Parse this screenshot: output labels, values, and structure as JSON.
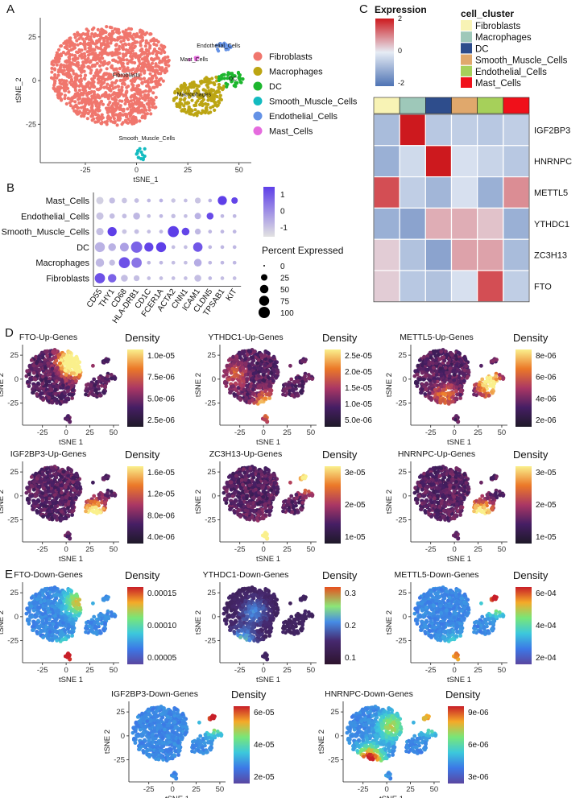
{
  "panels": [
    "A",
    "B",
    "C",
    "D",
    "E"
  ],
  "chart_data": [
    {
      "id": "A",
      "type": "scatter",
      "title": "",
      "xlabel": "tSNE_1",
      "ylabel": "tSNE_2",
      "xticks": [
        -25,
        0,
        25,
        50
      ],
      "yticks": [
        25,
        0,
        -25
      ],
      "xlim": [
        -47,
        56
      ],
      "ylim": [
        -47,
        36
      ],
      "legend": [
        "Fibroblasts",
        "Macrophages",
        "DC",
        "Smooth_Muscle_Cells",
        "Endothelial_Cells",
        "Mast_Cells"
      ],
      "colors": [
        "#F0766D",
        "#BCA513",
        "#1DB62E",
        "#13BBC0",
        "#6492E6",
        "#E56BDE"
      ],
      "cluster_labels": [
        {
          "name": "Fibroblasts",
          "x": -5,
          "y": 2
        },
        {
          "name": "Macrophages",
          "x": 28,
          "y": -9
        },
        {
          "name": "DC",
          "x": 47,
          "y": 0
        },
        {
          "name": "Smooth_Muscle_Cells",
          "x": 5,
          "y": -34
        },
        {
          "name": "Endothelial_Cells",
          "x": 40,
          "y": 19
        },
        {
          "name": "Mast_Cells",
          "x": 28,
          "y": 11
        }
      ]
    },
    {
      "id": "B",
      "type": "scatter",
      "subtype": "dotplot",
      "genes": [
        "CD55",
        "THY1",
        "CD68",
        "HLA-DRB1",
        "CD1C",
        "FCER1A",
        "ACTA2",
        "CNN1",
        "ICAM1",
        "CLDN5",
        "TPSAB1",
        "KIT"
      ],
      "clusters": [
        "Mast_Cells",
        "Endothelial_Cells",
        "Smooth_Muscle_Cells",
        "DC",
        "Macrophages",
        "Fibroblasts"
      ],
      "avg_expression": [
        [
          -0.8,
          -0.5,
          -0.6,
          -0.5,
          -0.4,
          -0.3,
          -0.6,
          -0.5,
          -0.6,
          -0.3,
          1.6,
          1.5
        ],
        [
          -0.6,
          -0.5,
          -0.5,
          -0.4,
          -0.5,
          -0.4,
          -0.5,
          -0.5,
          -0.3,
          1.4,
          -0.4,
          -0.4
        ],
        [
          -0.5,
          1.6,
          -0.6,
          -0.5,
          -0.5,
          -0.4,
          1.6,
          1.5,
          -0.4,
          -0.4,
          -0.4,
          -0.4
        ],
        [
          -0.3,
          -0.3,
          0.0,
          1.0,
          1.5,
          1.6,
          -0.5,
          -0.5,
          1.2,
          -0.4,
          -0.4,
          -0.4
        ],
        [
          -0.4,
          -0.5,
          1.3,
          0.7,
          -0.4,
          -0.4,
          -0.5,
          -0.5,
          -0.2,
          -0.4,
          -0.4,
          -0.4
        ],
        [
          1.3,
          1.0,
          -0.5,
          -0.5,
          -0.5,
          -0.5,
          -0.5,
          -0.5,
          -0.5,
          -0.4,
          -0.5,
          -0.5
        ]
      ],
      "pct_expressed": [
        [
          35,
          20,
          15,
          10,
          5,
          5,
          8,
          5,
          20,
          5,
          60,
          25
        ],
        [
          35,
          15,
          10,
          30,
          5,
          5,
          8,
          5,
          25,
          30,
          5,
          5
        ],
        [
          35,
          60,
          10,
          10,
          5,
          5,
          95,
          40,
          20,
          5,
          5,
          5
        ],
        [
          75,
          40,
          55,
          100,
          60,
          75,
          5,
          5,
          65,
          5,
          5,
          5
        ],
        [
          50,
          20,
          95,
          80,
          5,
          5,
          5,
          5,
          40,
          5,
          5,
          5
        ],
        [
          80,
          50,
          30,
          20,
          5,
          5,
          5,
          5,
          30,
          5,
          5,
          5
        ]
      ],
      "color_legend_ticks": [
        1,
        0,
        -1
      ],
      "size_legend_title": "Percent Expressed",
      "size_legend": [
        0,
        25,
        50,
        75,
        100
      ],
      "colorscale": [
        "#E2E2E2",
        "#5E3FE8"
      ]
    },
    {
      "id": "C",
      "type": "heatmap",
      "legend_title": "Expression",
      "legend_ticks": [
        2,
        0,
        -2
      ],
      "cluster_legend_title": "cell_cluster",
      "cluster_legend": [
        "Fibroblasts",
        "Macrophages",
        "DC",
        "Smooth_Muscle_Cells",
        "Endothelial_Cells",
        "Mast_Cells"
      ],
      "cluster_colors": [
        "#F8F3B5",
        "#9EC8B9",
        "#2E4D8C",
        "#E0A86C",
        "#A6D05A",
        "#F0101A"
      ],
      "rows": [
        "IGF2BP3",
        "HNRNPC",
        "METTL5",
        "YTHDC1",
        "ZC3H13",
        "FTO"
      ],
      "values": [
        [
          -0.8,
          2.0,
          -0.6,
          -0.5,
          -0.6,
          -0.5
        ],
        [
          -1.0,
          -0.3,
          2.0,
          -0.2,
          -0.4,
          -0.6
        ],
        [
          1.5,
          -0.5,
          -0.9,
          -0.2,
          -1.0,
          0.9
        ],
        [
          -1.0,
          -1.2,
          0.6,
          0.6,
          0.4,
          -1.0
        ],
        [
          0.3,
          -0.7,
          -1.2,
          0.7,
          0.7,
          -0.8
        ],
        [
          0.3,
          -0.6,
          -0.7,
          -0.2,
          1.5,
          -0.5
        ]
      ]
    },
    {
      "id": "D1",
      "type": "heatmap",
      "subtype": "density",
      "title": "FTO-Up-Genes",
      "xlabel": "tSNE 1",
      "ylabel": "tSNE 2",
      "legend_title": "Density",
      "legend_ticks": [
        "1.0e-05",
        "7.5e-06",
        "5.0e-06",
        "2.5e-06"
      ],
      "colormap": "inferno",
      "hotspots": [
        {
          "x": 10,
          "y": 15,
          "w": 1.0
        },
        {
          "x": 3,
          "y": 20,
          "w": 0.7
        }
      ],
      "xticks": [
        -25,
        0,
        25,
        50
      ],
      "yticks": [
        25,
        0,
        -25
      ]
    },
    {
      "id": "D2",
      "type": "heatmap",
      "subtype": "density",
      "title": "YTHDC1-Up-Genes",
      "xlabel": "tSNE 1",
      "ylabel": "tSNE 2",
      "legend_title": "Density",
      "legend_ticks": [
        "2.5e-05",
        "2.0e-05",
        "1.5e-05",
        "1.0e-05",
        "5.0e-06"
      ],
      "colormap": "inferno",
      "hotspots": [
        {
          "x": 5,
          "y": -28,
          "w": 1.0
        },
        {
          "x": -30,
          "y": 5,
          "w": 0.4
        }
      ],
      "xticks": [
        -25,
        0,
        25,
        50
      ],
      "yticks": [
        25,
        0,
        -25
      ]
    },
    {
      "id": "D3",
      "type": "heatmap",
      "subtype": "density",
      "title": "METTL5-Up-Genes",
      "xlabel": "tSNE 1",
      "ylabel": "tSNE 2",
      "legend_title": "Density",
      "legend_ticks": [
        "8e-06",
        "6e-06",
        "4e-06",
        "2e-06"
      ],
      "colormap": "inferno",
      "hotspots": [
        {
          "x": 38,
          "y": -5,
          "w": 1.0
        },
        {
          "x": -10,
          "y": -18,
          "w": 0.5
        }
      ],
      "xticks": [
        -25,
        0,
        25,
        50
      ],
      "yticks": [
        25,
        0,
        -25
      ]
    },
    {
      "id": "D4",
      "type": "heatmap",
      "subtype": "density",
      "title": "IGF2BP3-Up-Genes",
      "xlabel": "tSNE 1",
      "ylabel": "tSNE 2",
      "legend_title": "Density",
      "legend_ticks": [
        "1.6e-05",
        "1.2e-05",
        "8.0e-06",
        "4.0e-06"
      ],
      "colormap": "inferno",
      "hotspots": [
        {
          "x": 30,
          "y": -18,
          "w": 1.0
        }
      ],
      "xticks": [
        -25,
        0,
        25,
        50
      ],
      "yticks": [
        25,
        0,
        -25
      ]
    },
    {
      "id": "D5",
      "type": "heatmap",
      "subtype": "density",
      "title": "ZC3H13-Up-Genes",
      "xlabel": "tSNE 1",
      "ylabel": "tSNE 2",
      "legend_title": "Density",
      "legend_ticks": [
        "3e-05",
        "2e-05",
        "1e-05"
      ],
      "colormap": "inferno",
      "hotspots": [
        {
          "x": 3,
          "y": -40,
          "w": 1.0
        },
        {
          "x": 45,
          "y": 18,
          "w": 0.9
        }
      ],
      "xticks": [
        -25,
        0,
        25,
        50
      ],
      "yticks": [
        25,
        0,
        -25
      ]
    },
    {
      "id": "D6",
      "type": "heatmap",
      "subtype": "density",
      "title": "HNRNPC-Up-Genes",
      "xlabel": "tSNE 1",
      "ylabel": "tSNE 2",
      "legend_title": "Density",
      "legend_ticks": [
        "3e-05",
        "2e-05",
        "1e-05"
      ],
      "colormap": "inferno",
      "hotspots": [
        {
          "x": 28,
          "y": -18,
          "w": 1.0
        }
      ],
      "xticks": [
        -25,
        0,
        25,
        50
      ],
      "yticks": [
        25,
        0,
        -25
      ]
    },
    {
      "id": "E1",
      "type": "heatmap",
      "subtype": "density",
      "title": "FTO-Down-Genes",
      "xlabel": "tSNE 1",
      "ylabel": "tSNE 2",
      "legend_title": "Density",
      "legend_ticks": [
        "0.00015",
        "0.00010",
        "0.00005"
      ],
      "colormap": "spectral",
      "hotspots": [
        {
          "x": 3,
          "y": -40,
          "w": 1.0
        },
        {
          "x": 12,
          "y": 15,
          "w": 0.6
        }
      ],
      "xticks": [
        -25,
        0,
        25,
        50
      ],
      "yticks": [
        25,
        0,
        -25
      ]
    },
    {
      "id": "E2",
      "type": "heatmap",
      "subtype": "density",
      "title": "YTHDC1-Down-Genes",
      "xlabel": "tSNE 1",
      "ylabel": "tSNE 2",
      "legend_title": "Density",
      "legend_ticks": [
        "0.3",
        "0.2",
        "0.1"
      ],
      "colormap": "spectral",
      "hotspots": [
        {
          "x": -22,
          "y": -25,
          "w": 0.5
        },
        {
          "x": -10,
          "y": 5,
          "w": 0.35
        }
      ],
      "xticks": [
        -25,
        0,
        25,
        50
      ],
      "yticks": [
        25,
        0,
        -25
      ]
    },
    {
      "id": "E3",
      "type": "heatmap",
      "subtype": "density",
      "title": "METTL5-Down-Genes",
      "xlabel": "tSNE 1",
      "ylabel": "tSNE 2",
      "legend_title": "Density",
      "legend_ticks": [
        "6e-04",
        "4e-04",
        "2e-04"
      ],
      "colormap": "spectral",
      "hotspots": [
        {
          "x": 3,
          "y": -38,
          "w": 0.8
        },
        {
          "x": 45,
          "y": 18,
          "w": 1.0
        }
      ],
      "xticks": [
        -25,
        0,
        25,
        50
      ],
      "yticks": [
        25,
        0,
        -25
      ]
    },
    {
      "id": "E4",
      "type": "heatmap",
      "subtype": "density",
      "title": "IGF2BP3-Down-Genes",
      "xlabel": "tSNE 1",
      "ylabel": "tSNE 2",
      "legend_title": "Density",
      "legend_ticks": [
        "6e-05",
        "4e-05",
        "2e-05"
      ],
      "colormap": "spectral",
      "hotspots": [
        {
          "x": 45,
          "y": 18,
          "w": 1.0
        }
      ],
      "xticks": [
        -25,
        0,
        25,
        50
      ],
      "yticks": [
        25,
        0,
        -25
      ]
    },
    {
      "id": "E5",
      "type": "heatmap",
      "subtype": "density",
      "title": "HNRNPC-Down-Genes",
      "xlabel": "tSNE 1",
      "ylabel": "tSNE 2",
      "legend_title": "Density",
      "legend_ticks": [
        "9e-06",
        "6e-06",
        "3e-06"
      ],
      "colormap": "spectral",
      "hotspots": [
        {
          "x": -18,
          "y": -25,
          "w": 1.0
        },
        {
          "x": 5,
          "y": 10,
          "w": 0.55
        },
        {
          "x": 45,
          "y": 18,
          "w": 0.7
        }
      ],
      "xticks": [
        -25,
        0,
        25,
        50
      ],
      "yticks": [
        25,
        0,
        -25
      ]
    }
  ]
}
